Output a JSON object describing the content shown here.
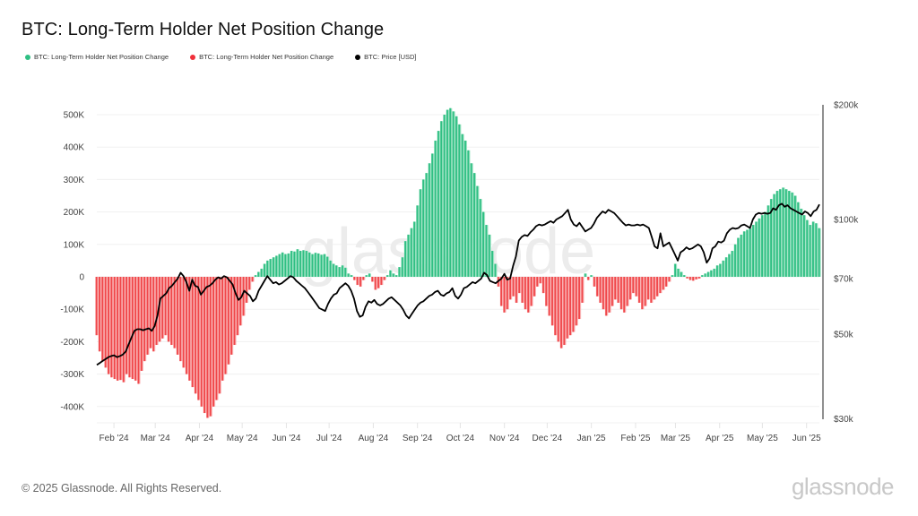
{
  "page": {
    "title": "BTC: Long-Term Holder Net Position Change",
    "footer": "© 2025 Glassnode. All Rights Reserved.",
    "brand": "glassnode",
    "watermark": "glassnode"
  },
  "legend": [
    {
      "label": "BTC: Long-Term Holder Net Position Change",
      "color": "#2fbf83"
    },
    {
      "label": "BTC: Long-Term Holder Net Position Change",
      "color": "#f0303a"
    },
    {
      "label": "BTC: Price [USD]",
      "color": "#000000"
    }
  ],
  "colors": {
    "positive": "#2fbf83",
    "positive_light": "#9fe3c4",
    "negative": "#f0474a",
    "negative_light": "#f9b3b4",
    "price": "#000000",
    "grid": "#f0f0f0"
  },
  "chart_data": {
    "type": "bar",
    "title": "BTC: Long-Term Holder Net Position Change",
    "x_start": "2024-01-20",
    "x_end": "2025-06-10",
    "x_step_days": 2.5,
    "x_tick_labels": [
      "Feb '24",
      "Mar '24",
      "Apr '24",
      "May '24",
      "Jun '24",
      "Jul '24",
      "Aug '24",
      "Sep '24",
      "Oct '24",
      "Nov '24",
      "Dec '24",
      "Jan '25",
      "Feb '25",
      "Mar '25",
      "Apr '25",
      "May '25",
      "Jun '25"
    ],
    "x_tick_dates": [
      "2024-02-01",
      "2024-03-01",
      "2024-04-01",
      "2024-05-01",
      "2024-06-01",
      "2024-07-01",
      "2024-08-01",
      "2024-09-01",
      "2024-10-01",
      "2024-11-01",
      "2024-12-01",
      "2025-01-01",
      "2025-02-01",
      "2025-03-01",
      "2025-04-01",
      "2025-05-01",
      "2025-06-01"
    ],
    "y_left": {
      "label": "",
      "ticks": [
        -400000,
        -300000,
        -200000,
        -100000,
        0,
        100000,
        200000,
        300000,
        400000,
        500000
      ],
      "tick_labels": [
        "-400K",
        "-300K",
        "-200K",
        "-100K",
        "0",
        "100K",
        "200K",
        "300K",
        "400K",
        "500K"
      ],
      "range": [
        -440000,
        530000
      ]
    },
    "y_right": {
      "label": "Price [USD]",
      "scale": "log",
      "ticks": [
        30000,
        50000,
        70000,
        100000,
        200000
      ],
      "tick_labels": [
        "$30k",
        "$50k",
        "$70k",
        "$100k",
        "$200k"
      ],
      "range": [
        30000,
        200000
      ]
    },
    "series": [
      {
        "name": "BTC: Long-Term Holder Net Position Change",
        "unit": "thousand BTC",
        "values": [
          -180,
          -230,
          -260,
          -280,
          -300,
          -310,
          -315,
          -320,
          -318,
          -325,
          -300,
          -310,
          -315,
          -320,
          -330,
          -290,
          -260,
          -240,
          -220,
          -230,
          -210,
          -200,
          -190,
          -180,
          -200,
          -210,
          -220,
          -240,
          -260,
          -280,
          -300,
          -320,
          -340,
          -360,
          -380,
          -400,
          -420,
          -435,
          -430,
          -400,
          -380,
          -360,
          -320,
          -300,
          -270,
          -240,
          -210,
          -180,
          -150,
          -120,
          -80,
          -40,
          -15,
          5,
          15,
          25,
          40,
          50,
          55,
          60,
          65,
          70,
          75,
          70,
          72,
          80,
          78,
          85,
          80,
          82,
          80,
          75,
          70,
          74,
          72,
          68,
          70,
          62,
          50,
          40,
          35,
          30,
          35,
          28,
          10,
          5,
          -10,
          -25,
          -30,
          -10,
          5,
          10,
          -15,
          -40,
          -35,
          -25,
          -10,
          5,
          20,
          10,
          5,
          30,
          60,
          110,
          130,
          150,
          170,
          220,
          270,
          300,
          320,
          350,
          380,
          420,
          450,
          480,
          500,
          515,
          520,
          510,
          495,
          470,
          440,
          420,
          390,
          350,
          320,
          280,
          240,
          200,
          160,
          130,
          80,
          40,
          -30,
          -90,
          -110,
          -100,
          -70,
          -60,
          -80,
          -50,
          -80,
          -100,
          -110,
          -90,
          -60,
          -30,
          -20,
          -50,
          -90,
          -120,
          -150,
          -180,
          -200,
          -220,
          -210,
          -190,
          -180,
          -170,
          -150,
          -130,
          -80,
          10,
          -10,
          5,
          -30,
          -60,
          -80,
          -100,
          -120,
          -110,
          -90,
          -70,
          -80,
          -100,
          -110,
          -90,
          -70,
          -50,
          -60,
          -80,
          -100,
          -90,
          -70,
          -80,
          -70,
          -60,
          -50,
          -40,
          -30,
          -15,
          5,
          40,
          25,
          15,
          5,
          -5,
          -10,
          -12,
          -8,
          -5,
          5,
          10,
          15,
          20,
          25,
          35,
          40,
          50,
          60,
          70,
          80,
          100,
          120,
          130,
          140,
          145,
          150,
          160,
          170,
          180,
          190,
          200,
          220,
          240,
          255,
          265,
          270,
          275,
          270,
          265,
          260,
          250,
          230,
          210,
          190,
          175,
          160,
          170,
          165,
          150
        ]
      },
      {
        "name": "BTC: Price [USD]",
        "unit": "thousand USD",
        "values": [
          41.5,
          42,
          42.5,
          43,
          43.5,
          43.8,
          44,
          43.5,
          43.8,
          44.2,
          45,
          47,
          49,
          51,
          51.5,
          51.5,
          51.2,
          51.5,
          51.8,
          51,
          52.5,
          56,
          62,
          63,
          64,
          66,
          67,
          68.5,
          70,
          72.5,
          71,
          68.5,
          65,
          69.5,
          67,
          66.5,
          63.5,
          65,
          66.5,
          67,
          68,
          69.5,
          70.5,
          70,
          71,
          70.5,
          69,
          67.5,
          64,
          61.5,
          62.5,
          65,
          64,
          63,
          61,
          62,
          65,
          67,
          69,
          71,
          69.5,
          68,
          68.5,
          67.5,
          68,
          69,
          70,
          71,
          70.5,
          69,
          68,
          67,
          66,
          64.5,
          63,
          61.5,
          60,
          58.5,
          58,
          57.5,
          60,
          62,
          63.5,
          64,
          66,
          67,
          68,
          67,
          65,
          62,
          57.5,
          55.5,
          56,
          59,
          61,
          60.5,
          61.5,
          60,
          59.5,
          60,
          61,
          62,
          62.5,
          61.5,
          60.5,
          59.5,
          58,
          56,
          55,
          56.5,
          58,
          59.5,
          60.5,
          61,
          62,
          63,
          63.5,
          64.5,
          65,
          63.5,
          63,
          64,
          64.5,
          66,
          63,
          62,
          63.5,
          66,
          66.5,
          67.5,
          68.5,
          68,
          69,
          70,
          72.5,
          71.5,
          69,
          68.5,
          68,
          69,
          70,
          72,
          69.5,
          70,
          75.5,
          80,
          88,
          90,
          91,
          90.5,
          92.5,
          94,
          96,
          97,
          96.5,
          97,
          98,
          99,
          98,
          100,
          101,
          102,
          104,
          106,
          100,
          97,
          96,
          98,
          95.5,
          93,
          94,
          95,
          97.5,
          101,
          103,
          105,
          104,
          106,
          105,
          104,
          102,
          100,
          98,
          96.5,
          97,
          96.5,
          96.5,
          97,
          96.5,
          97,
          96,
          95,
          90,
          85,
          84,
          92,
          85,
          86,
          87,
          84,
          81,
          78,
          82,
          83,
          84.5,
          83.5,
          84,
          85,
          86,
          85,
          82,
          77,
          79,
          84,
          85,
          87.5,
          87,
          88,
          92,
          94,
          95,
          94.5,
          95,
          96.5,
          97,
          96,
          95,
          100,
          103,
          104,
          103.5,
          104,
          103.5,
          104,
          107,
          106,
          109,
          110,
          108,
          109,
          107,
          106,
          105,
          104,
          103,
          105,
          104,
          102,
          105,
          106,
          109.5
        ]
      }
    ],
    "grid": true,
    "legend_position": "top-left"
  }
}
